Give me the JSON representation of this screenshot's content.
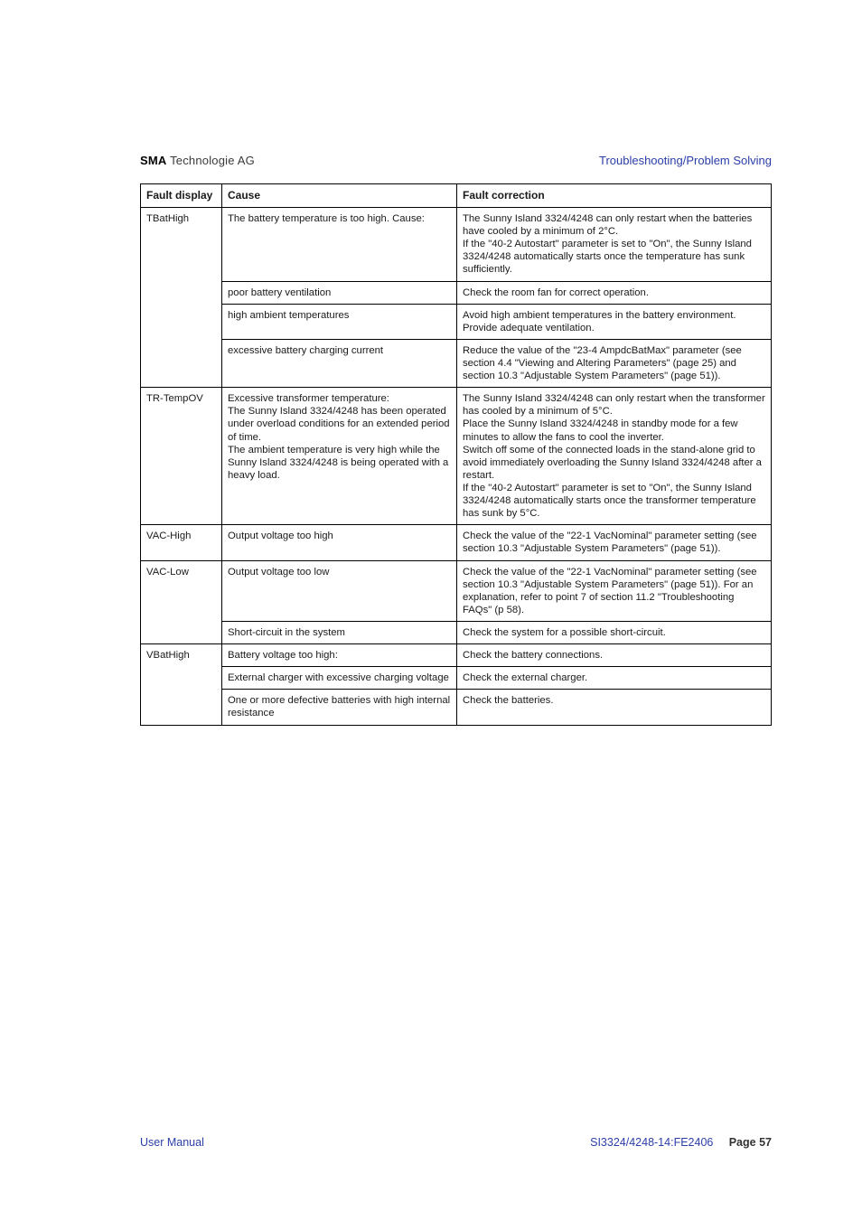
{
  "header": {
    "left_bold": "SMA",
    "left_rest": " Technologie AG",
    "right": "Troubleshooting/Problem Solving"
  },
  "table": {
    "headers": {
      "c1": "Fault display",
      "c2": "Cause",
      "c3": "Fault correction"
    },
    "rows": [
      {
        "c1": "TBatHigh",
        "c1_rowspan": 4,
        "c2": "The battery temperature is too high. Cause:",
        "c3": "The Sunny Island 3324/4248 can only restart when the batteries have cooled by a minimum of 2°C.\nIf the \"40-2 Autostart\" parameter is set to \"On\", the Sunny Island 3324/4248 automatically starts once the temperature has sunk sufficiently."
      },
      {
        "c2": "poor battery ventilation",
        "c3": "Check the room fan for correct operation."
      },
      {
        "c2": "high ambient temperatures",
        "c3": "Avoid high ambient temperatures in the battery environment. Provide adequate ventilation."
      },
      {
        "c2": "excessive battery charging current",
        "c3": "Reduce the value of the \"23-4 AmpdcBatMax\" parameter (see section 4.4 \"Viewing and Altering Parameters\" (page 25) and section 10.3 \"Adjustable System Parameters\" (page 51))."
      },
      {
        "c1": "TR-TempOV",
        "c2": "Excessive transformer temperature:\nThe Sunny Island 3324/4248 has been operated under overload conditions for an extended period of time.\nThe ambient temperature is very high while the Sunny Island 3324/4248 is being operated with a heavy load.",
        "c3": "The Sunny Island 3324/4248 can only restart when the transformer has cooled by a minimum of 5°C.\nPlace the Sunny Island 3324/4248 in standby mode for a few minutes to allow the fans to cool the inverter.\nSwitch off some of the connected loads in the stand-alone grid to avoid immediately overloading the Sunny Island 3324/4248 after a restart.\nIf the \"40-2 Autostart\" parameter is set to \"On\", the Sunny Island 3324/4248 automatically starts once the transformer temperature has sunk by 5°C."
      },
      {
        "c1": "VAC-High",
        "c2": "Output voltage too high",
        "c3": "Check the value of the \"22-1 VacNominal\" parameter setting (see section 10.3 \"Adjustable System Parameters\" (page 51))."
      },
      {
        "c1": "VAC-Low",
        "c1_rowspan": 2,
        "c2": "Output voltage too low",
        "c3": "Check the value of the \"22-1 VacNominal\" parameter setting (see section 10.3 \"Adjustable System Parameters\" (page 51)). For an explanation, refer to point 7 of section 11.2 \"Troubleshooting FAQs\" (p 58)."
      },
      {
        "c2": "Short-circuit in the system",
        "c3": "Check the system for a possible short-circuit."
      },
      {
        "c1": "VBatHigh",
        "c1_rowspan": 3,
        "c2": "Battery voltage too high:",
        "c3": "Check the battery connections."
      },
      {
        "c2": "External charger with excessive charging voltage",
        "c3": "Check the external charger."
      },
      {
        "c2": "One or more defective batteries with high internal resistance",
        "c3": "Check the batteries."
      }
    ]
  },
  "footer": {
    "left": "User Manual",
    "right_code": "SI3324/4248-14:FE2406",
    "right_page_label": "Page",
    "right_page_num": "57"
  }
}
